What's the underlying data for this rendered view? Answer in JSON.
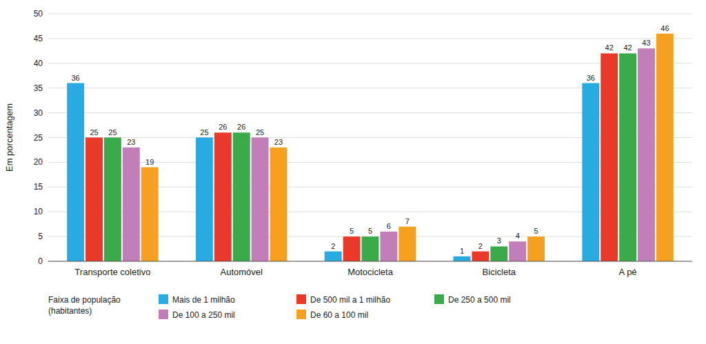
{
  "chart_data": {
    "type": "bar",
    "ylabel": "Em porcentagem",
    "categories": [
      "Transporte coletivo",
      "Automóvel",
      "Motocicleta",
      "Bicicleta",
      "A pé"
    ],
    "series": [
      {
        "name": "Mais de 1 milhão",
        "color": "#29ABE2",
        "values": [
          36,
          25,
          2,
          1,
          36
        ]
      },
      {
        "name": "De 500 mil a 1 milhão",
        "color": "#E8392A",
        "values": [
          25,
          26,
          5,
          2,
          42
        ]
      },
      {
        "name": "De 250 a 500 mil",
        "color": "#3AAA4A",
        "values": [
          25,
          26,
          5,
          3,
          42
        ]
      },
      {
        "name": "De 100 a 250 mil",
        "color": "#C17EB8",
        "values": [
          23,
          25,
          6,
          4,
          43
        ]
      },
      {
        "name": "De 60 a 100 mil",
        "color": "#F5A020",
        "values": [
          19,
          23,
          7,
          5,
          46
        ]
      }
    ],
    "legend_title": "Faixa de população\n(habitantes)",
    "ylim": [
      0,
      50
    ],
    "yticks": [
      0,
      5,
      10,
      15,
      20,
      25,
      30,
      35,
      40,
      45,
      50
    ],
    "grid": true,
    "data_labels": true,
    "legend": "bottom"
  }
}
